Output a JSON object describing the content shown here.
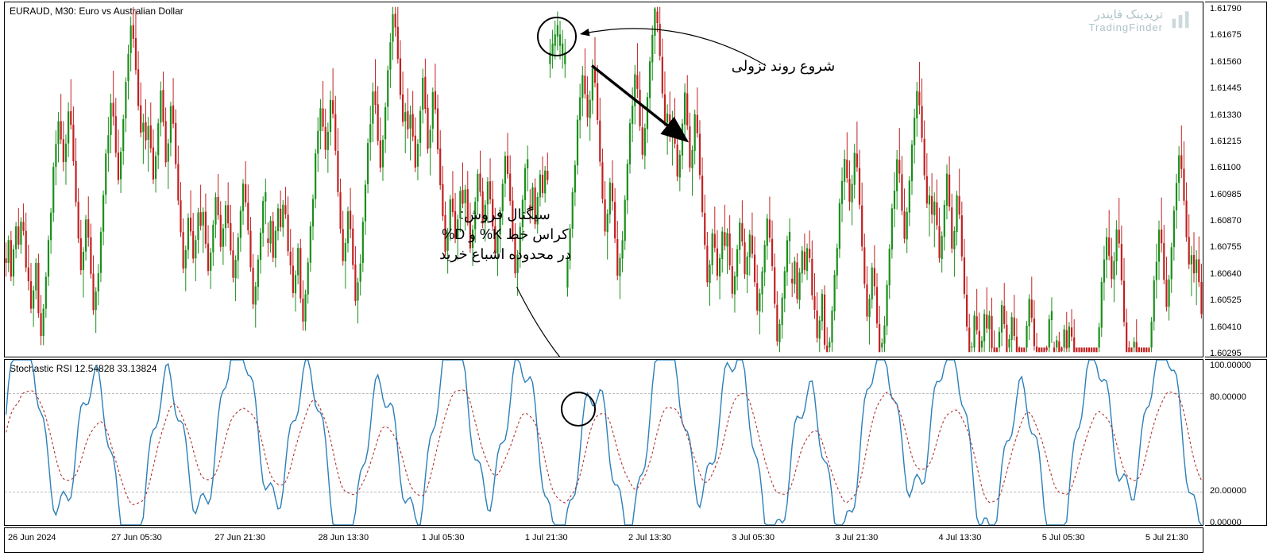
{
  "header": {
    "title": "EURAUD, M30:  Euro vs Australian Dollar",
    "watermark_top": "تریدینک فایندر",
    "watermark_sub": "TradingFinder"
  },
  "price_chart": {
    "type": "candlestick",
    "ymin": 1.6025,
    "ymax": 1.618,
    "ticks": [
      "1.61790",
      "1.61675",
      "1.61560",
      "1.61445",
      "1.61330",
      "1.61215",
      "1.61100",
      "1.60985",
      "1.60870",
      "1.60755",
      "1.60640",
      "1.60525",
      "1.60410",
      "1.60295"
    ],
    "up_color": "#1a8f1a",
    "down_color": "#c22020",
    "n": 480,
    "seed_ohlc": [
      [
        1.6068,
        1.6075,
        1.606,
        1.6066
      ],
      [
        1.6066,
        1.6078,
        1.6062,
        1.6076
      ],
      [
        1.6076,
        1.608,
        1.6058,
        1.606
      ],
      [
        1.606,
        1.6074,
        1.6056,
        1.6072
      ],
      [
        1.6072,
        1.6084,
        1.6068,
        1.6082
      ],
      [
        1.6082,
        1.609,
        1.6072,
        1.6074
      ],
      [
        1.6074,
        1.6086,
        1.607,
        1.6084
      ],
      [
        1.6084,
        1.6092,
        1.6078,
        1.608
      ],
      [
        1.608,
        1.6088,
        1.6062,
        1.6064
      ],
      [
        1.6064,
        1.6074,
        1.6054,
        1.6058
      ],
      [
        1.6058,
        1.6066,
        1.6044,
        1.6046
      ],
      [
        1.6046,
        1.6056,
        1.6038,
        1.6054
      ],
      [
        1.6054,
        1.6068,
        1.605,
        1.6066
      ],
      [
        1.6066,
        1.607,
        1.6042,
        1.6044
      ],
      [
        1.6044,
        1.6052,
        1.603,
        1.6034
      ],
      [
        1.6034,
        1.6048,
        1.603,
        1.6046
      ],
      [
        1.6046,
        1.6062,
        1.6042,
        1.606
      ],
      [
        1.606,
        1.6078,
        1.6056,
        1.6076
      ],
      [
        1.6076,
        1.609,
        1.607,
        1.6088
      ],
      [
        1.6088,
        1.611,
        1.6084,
        1.6108
      ],
      [
        1.6108,
        1.6124,
        1.61,
        1.6118
      ],
      [
        1.6118,
        1.6132,
        1.611,
        1.6128
      ],
      [
        1.6128,
        1.614,
        1.6118,
        1.612
      ],
      [
        1.612,
        1.6128,
        1.6106,
        1.611
      ],
      [
        1.611,
        1.6122,
        1.61,
        1.6118
      ],
      [
        1.6118,
        1.6136,
        1.6112,
        1.6132
      ],
      [
        1.6132,
        1.6146,
        1.6124,
        1.6126
      ],
      [
        1.6126,
        1.6134,
        1.6108,
        1.611
      ],
      [
        1.611,
        1.612,
        1.609,
        1.6092
      ],
      [
        1.6092,
        1.6098,
        1.6074,
        1.6076
      ],
      [
        1.6076,
        1.6084,
        1.606,
        1.6062
      ],
      [
        1.6062,
        1.6072,
        1.605,
        1.607
      ],
      [
        1.607,
        1.6086,
        1.6066,
        1.6084
      ],
      [
        1.6084,
        1.6094,
        1.6072,
        1.6076
      ],
      [
        1.6076,
        1.6082,
        1.6058,
        1.606
      ],
      [
        1.606,
        1.6068,
        1.6042,
        1.6044
      ],
      [
        1.6044,
        1.6054,
        1.6034,
        1.6052
      ],
      [
        1.6052,
        1.6064,
        1.6046,
        1.606
      ],
      [
        1.606,
        1.608,
        1.6056,
        1.6078
      ],
      [
        1.6078,
        1.6096,
        1.6072,
        1.6094
      ],
      [
        1.6094,
        1.6114,
        1.609,
        1.6112
      ],
      [
        1.6112,
        1.6128,
        1.6104,
        1.612
      ],
      [
        1.612,
        1.6138,
        1.6112,
        1.6134
      ],
      [
        1.6134,
        1.6148,
        1.6124,
        1.6128
      ],
      [
        1.6128,
        1.6136,
        1.611,
        1.6112
      ],
      [
        1.6112,
        1.6122,
        1.6098,
        1.61
      ],
      [
        1.61,
        1.6114,
        1.6094,
        1.6112
      ],
      [
        1.6112,
        1.6128,
        1.6106,
        1.6126
      ],
      [
        1.6126,
        1.6144,
        1.612,
        1.6142
      ],
      [
        1.6142,
        1.6158,
        1.6134,
        1.6154
      ],
      [
        1.6154,
        1.617,
        1.6146,
        1.6166
      ],
      [
        1.6166,
        1.6179,
        1.6156,
        1.616
      ],
      [
        1.616,
        1.6172,
        1.6144,
        1.6146
      ],
      [
        1.6146,
        1.6154,
        1.6128,
        1.613
      ],
      [
        1.613,
        1.614,
        1.6116,
        1.6118
      ],
      [
        1.6118,
        1.6126,
        1.6104,
        1.6122
      ],
      [
        1.6122,
        1.6132,
        1.611,
        1.6114
      ],
      [
        1.6114,
        1.6124,
        1.61,
        1.612
      ],
      [
        1.612,
        1.613,
        1.6108,
        1.611
      ],
      [
        1.611,
        1.6118,
        1.6094,
        1.6096
      ],
      [
        1.6096,
        1.6108,
        1.609,
        1.6106
      ],
      [
        1.6106,
        1.6122,
        1.61,
        1.612
      ],
      [
        1.612,
        1.6138,
        1.6114,
        1.6134
      ],
      [
        1.6134,
        1.6142,
        1.6118,
        1.612
      ],
      [
        1.612,
        1.6126,
        1.61,
        1.6102
      ],
      [
        1.6102,
        1.6112,
        1.609,
        1.611
      ],
      [
        1.611,
        1.6128,
        1.6104,
        1.6126
      ],
      [
        1.6126,
        1.6138,
        1.6116,
        1.6118
      ],
      [
        1.6118,
        1.6124,
        1.6098,
        1.61
      ],
      [
        1.61,
        1.6108,
        1.6082,
        1.6084
      ],
      [
        1.6084,
        1.6092,
        1.6068,
        1.607
      ],
      [
        1.607,
        1.6076,
        1.6052,
        1.6054
      ],
      [
        1.6054,
        1.6064,
        1.6044,
        1.6062
      ],
      [
        1.6062,
        1.6078,
        1.6058,
        1.6076
      ],
      [
        1.6076,
        1.6088,
        1.6068,
        1.607
      ],
      [
        1.607,
        1.6078,
        1.6056,
        1.6058
      ],
      [
        1.6058,
        1.6068,
        1.6048,
        1.6066
      ],
      [
        1.6066,
        1.608,
        1.606,
        1.6078
      ],
      [
        1.6078,
        1.609,
        1.607,
        1.6072
      ],
      [
        1.6072,
        1.608,
        1.606,
        1.6078
      ],
      [
        1.6078,
        1.6086,
        1.6062,
        1.6064
      ],
      [
        1.6064,
        1.6072,
        1.605,
        1.6052
      ],
      [
        1.6052,
        1.6062,
        1.6044,
        1.606
      ],
      [
        1.606,
        1.6074,
        1.6054,
        1.6072
      ],
      [
        1.6072,
        1.6086,
        1.6066,
        1.6084
      ],
      [
        1.6084,
        1.6094,
        1.6074,
        1.6076
      ],
      [
        1.6076,
        1.6082,
        1.606,
        1.6062
      ],
      [
        1.6062,
        1.6072,
        1.6054,
        1.607
      ],
      [
        1.607,
        1.6082,
        1.6062,
        1.608
      ],
      [
        1.608,
        1.609,
        1.607,
        1.6072
      ],
      [
        1.6072,
        1.608,
        1.6058,
        1.606
      ],
      [
        1.606,
        1.6068,
        1.6046,
        1.6048
      ],
      [
        1.6048,
        1.6058,
        1.6038,
        1.6056
      ],
      [
        1.6056,
        1.6068,
        1.6048,
        1.6066
      ],
      [
        1.6066,
        1.608,
        1.606,
        1.6078
      ],
      [
        1.6078,
        1.6092,
        1.6072,
        1.609
      ],
      [
        1.609,
        1.61,
        1.608,
        1.6082
      ],
      [
        1.6082,
        1.609,
        1.6068,
        1.607
      ],
      [
        1.607,
        1.6076,
        1.6052,
        1.6054
      ],
      [
        1.6054,
        1.606,
        1.6036,
        1.6038
      ],
      [
        1.6038,
        1.6048,
        1.6028,
        1.6046
      ],
      [
        1.6046,
        1.606,
        1.604,
        1.6058
      ],
      [
        1.6058,
        1.6072,
        1.6052,
        1.607
      ],
      [
        1.607,
        1.6086,
        1.6064,
        1.6084
      ],
      [
        1.6084,
        1.6094,
        1.6074,
        1.6088
      ]
    ]
  },
  "annotations": {
    "top_label": "شروع روند نزولی",
    "mid_label_l1": "سیگنال فروش:",
    "mid_label_l2": "کراس خط K% و D%",
    "mid_label_l3": "در محدوده اشباع خرید"
  },
  "indicator": {
    "title": "Stochastic RSI 12.54828 33.13824",
    "ymin": 0,
    "ymax": 100,
    "ticks": [
      "100.00000",
      "80.00000",
      "20.00000",
      "0.00000"
    ],
    "guide_levels": [
      80,
      20
    ],
    "k_color": "#2b7fb8",
    "d_color": "#b03030",
    "d_dash": "3,3"
  },
  "time_axis": {
    "labels": [
      "26 Jun 2024",
      "27 Jun 05:30",
      "27 Jun 21:30",
      "28 Jun 13:30",
      "1 Jul 05:30",
      "1 Jul 21:30",
      "2 Jul 13:30",
      "3 Jul 05:30",
      "3 Jul 21:30",
      "4 Jul 13:30",
      "5 Jul 05:30",
      "5 Jul 21:30"
    ]
  },
  "colors": {
    "bg": "#ffffff",
    "border": "#000000",
    "text": "#000000",
    "watermark": "#8aa8b0"
  }
}
